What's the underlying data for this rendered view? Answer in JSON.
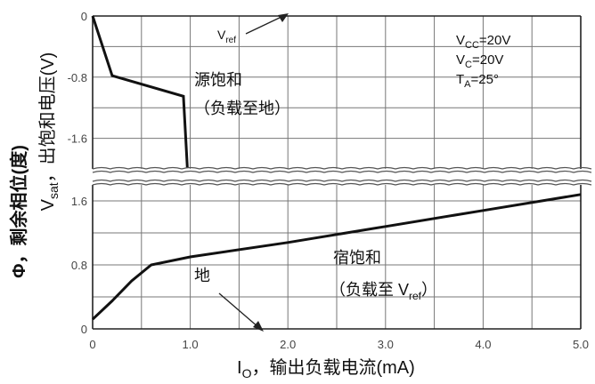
{
  "chart_data": {
    "type": "line",
    "xlabel": "I<sub>O</sub>, 输出负载电流(mA)",
    "xlabel_main": "I",
    "xlabel_sub": "O",
    "xlabel_rest": "，输出负载电流(mA)",
    "ylabel_outer": "Φ，剩余相位(度)",
    "ylabel_inner_main": "V",
    "ylabel_inner_sub": "sat",
    "ylabel_inner_rest": "，出饱和电压(V)",
    "xlim": [
      0,
      5.0
    ],
    "x_ticks": [
      "0",
      "1.0",
      "2.0",
      "3.0",
      "4.0",
      "5.0"
    ],
    "x_tick_values": [
      0,
      1.0,
      2.0,
      3.0,
      4.0,
      5.0
    ],
    "upper_panel": {
      "ylim": [
        0,
        -2.0
      ],
      "y_ticks": [
        "0",
        "-0.8",
        "-1.6"
      ],
      "y_tick_values": [
        0,
        -0.8,
        -1.6
      ],
      "series": [
        {
          "name": "源饱和（负载至地）",
          "points": [
            [
              0,
              0
            ],
            [
              0.2,
              -0.78
            ],
            [
              0.93,
              -1.05
            ],
            [
              0.97,
              -1.98
            ]
          ]
        }
      ]
    },
    "lower_panel": {
      "ylim": [
        0,
        1.8
      ],
      "y_ticks": [
        "0",
        "0.8",
        "1.6"
      ],
      "y_tick_values": [
        0,
        0.8,
        1.6
      ],
      "series": [
        {
          "name": "宿饱和（负载至 Vref）",
          "points": [
            [
              0,
              0.12
            ],
            [
              0.2,
              0.35
            ],
            [
              0.4,
              0.6
            ],
            [
              0.6,
              0.8
            ],
            [
              1.0,
              0.9
            ],
            [
              2.0,
              1.08
            ],
            [
              3.0,
              1.28
            ],
            [
              4.0,
              1.48
            ],
            [
              5.0,
              1.68
            ]
          ]
        }
      ]
    },
    "conditions": {
      "vcc": {
        "main": "V",
        "sub": "CC",
        "rest": "=20V"
      },
      "vc": {
        "main": "V",
        "sub": "C",
        "rest": "=20V"
      },
      "ta": {
        "main": "T",
        "sub": "A",
        "rest": "=25°"
      }
    },
    "annotations": {
      "vref_main": "V",
      "vref_sub": "ref",
      "source_sat_line1": "源饱和",
      "source_sat_line2": "（负载至地）",
      "sink_sat_line1": "宿饱和",
      "sink_sat_line2_pre": "（负载至 V",
      "sink_sat_line2_sub": "ref",
      "sink_sat_line2_post": "）",
      "ground": "地"
    },
    "grid": true
  }
}
